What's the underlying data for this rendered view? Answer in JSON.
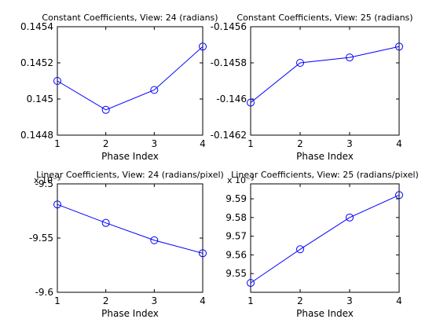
{
  "chart_data": [
    {
      "type": "line",
      "title": "Constant Coefficients, View: 24 (radians)",
      "xlabel": "Phase Index",
      "ylabel": "",
      "x": [
        1,
        2,
        3,
        4
      ],
      "xticks": [
        "1",
        "2",
        "3",
        "4"
      ],
      "xlim": [
        1,
        4
      ],
      "ylim": [
        0.1448,
        0.1454
      ],
      "yticks": [
        "0.1448",
        "0.145",
        "0.1452",
        "0.1454"
      ],
      "yticks_values": [
        0.1448,
        0.145,
        0.1452,
        0.1454
      ],
      "exponent": "",
      "series": [
        {
          "values": [
            0.1451,
            0.14494,
            0.14505,
            0.14529
          ],
          "color": "#0000ff",
          "marker": "circle"
        }
      ]
    },
    {
      "type": "line",
      "title": "Constant Coefficients, View: 25 (radians)",
      "xlabel": "Phase Index",
      "ylabel": "",
      "x": [
        1,
        2,
        3,
        4
      ],
      "xticks": [
        "1",
        "2",
        "3",
        "4"
      ],
      "xlim": [
        1,
        4
      ],
      "ylim": [
        -0.1462,
        -0.1456
      ],
      "yticks": [
        "-0.1462",
        "-0.146",
        "-0.1458",
        "-0.1456"
      ],
      "yticks_values": [
        -0.1462,
        -0.146,
        -0.1458,
        -0.1456
      ],
      "exponent": "",
      "series": [
        {
          "values": [
            -0.14602,
            -0.1458,
            -0.14577,
            -0.14571
          ],
          "color": "#0000ff",
          "marker": "circle"
        }
      ]
    },
    {
      "type": "line",
      "title": "Linear Coefficients, View: 24 (radians/pixel)",
      "xlabel": "Phase Index",
      "ylabel": "",
      "x": [
        1,
        2,
        3,
        4
      ],
      "xticks": [
        "1",
        "2",
        "3",
        "4"
      ],
      "xlim": [
        1,
        4
      ],
      "ylim": [
        -9.6,
        -9.5
      ],
      "yticks": [
        "-9.6",
        "-9.55",
        "-9.5"
      ],
      "yticks_values": [
        -9.6,
        -9.55,
        -9.5
      ],
      "exponent": "x 10⁻³",
      "series": [
        {
          "values": [
            -9.519,
            -9.536,
            -9.552,
            -9.564
          ],
          "color": "#0000ff",
          "marker": "circle"
        }
      ]
    },
    {
      "type": "line",
      "title": "Linear Coefficients, View: 25 (radians/pixel)",
      "xlabel": "Phase Index",
      "ylabel": "",
      "x": [
        1,
        2,
        3,
        4
      ],
      "xticks": [
        "1",
        "2",
        "3",
        "4"
      ],
      "xlim": [
        1,
        4
      ],
      "ylim": [
        9.54,
        9.598
      ],
      "yticks": [
        "9.55",
        "9.56",
        "9.57",
        "9.58",
        "9.59"
      ],
      "yticks_values": [
        9.55,
        9.56,
        9.57,
        9.58,
        9.59
      ],
      "exponent": "x 10⁻³",
      "series": [
        {
          "values": [
            9.545,
            9.563,
            9.58,
            9.592
          ],
          "color": "#0000ff",
          "marker": "circle"
        }
      ]
    }
  ]
}
